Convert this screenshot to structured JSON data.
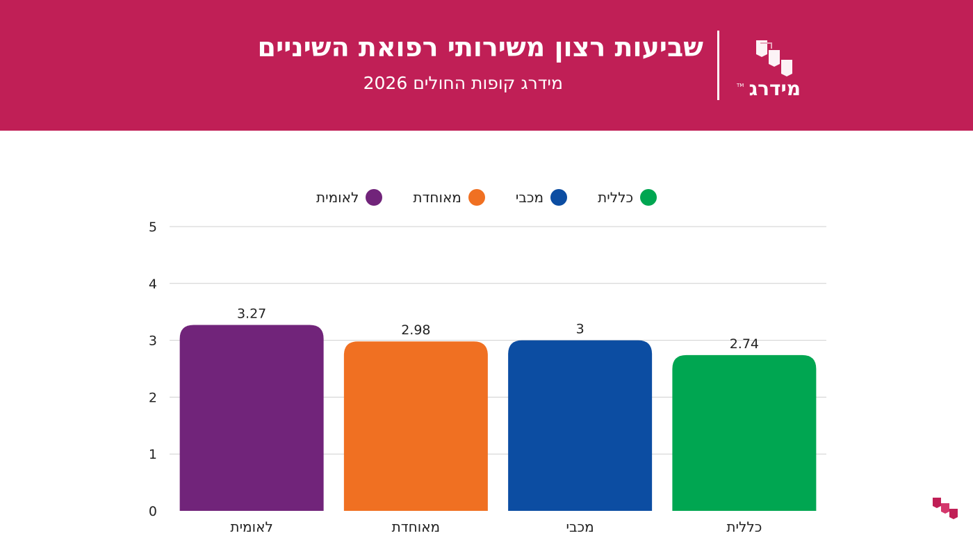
{
  "header": {
    "title": "שביעות רצון משירותי רפואת השיניים",
    "subtitle": "מידרג קופות החולים 2026",
    "logo_text": "מידרג",
    "logo_tm": "TM",
    "background_color": "#c01f56"
  },
  "chart_data": {
    "type": "bar",
    "categories": [
      "לאומית",
      "מאוחדת",
      "מכבי",
      "כללית"
    ],
    "values": [
      3.27,
      2.98,
      3,
      2.74
    ],
    "value_labels": [
      "3.27",
      "2.98",
      "3",
      "2.74"
    ],
    "colors": [
      "#71247a",
      "#f07022",
      "#0c4da2",
      "#00a651"
    ],
    "legend": {
      "placement": "top-center",
      "items": [
        {
          "label": "כללית",
          "color": "#00a651"
        },
        {
          "label": "מכבי",
          "color": "#0c4da2"
        },
        {
          "label": "מאוחדת",
          "color": "#f07022"
        },
        {
          "label": "לאומית",
          "color": "#71247a"
        }
      ]
    },
    "y_ticks": [
      "0",
      "1",
      "2",
      "3",
      "4",
      "5"
    ],
    "ylim": [
      0,
      5
    ],
    "grid": true
  }
}
